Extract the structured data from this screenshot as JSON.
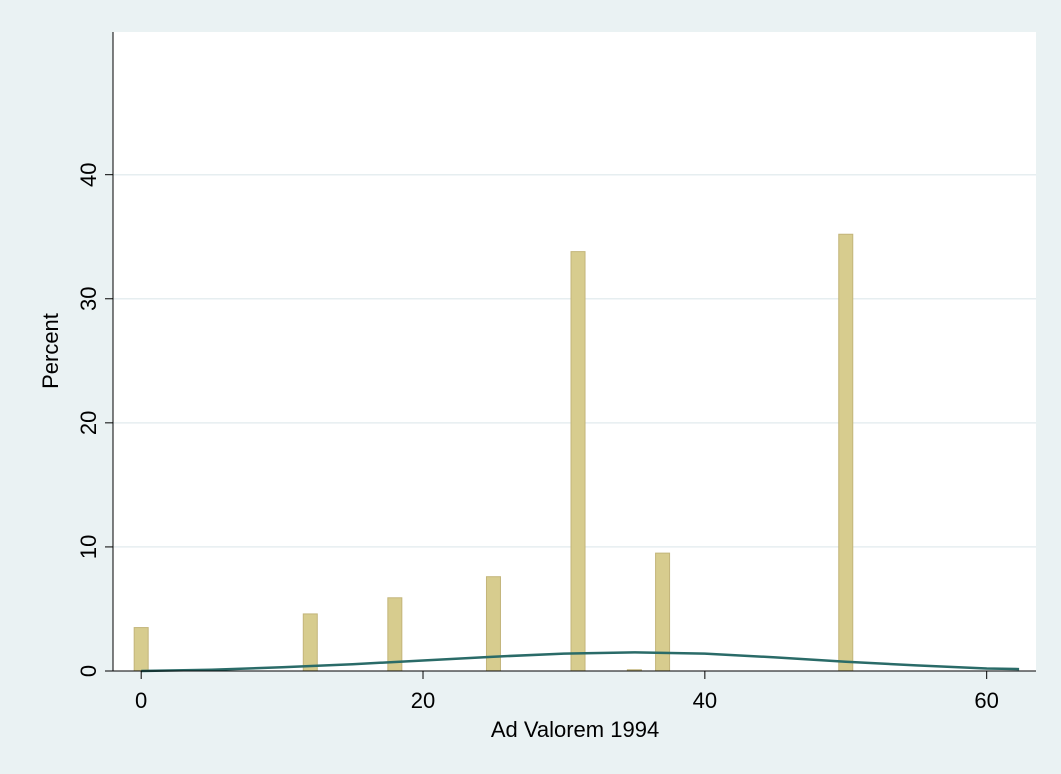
{
  "chart_data": {
    "type": "bar",
    "title": "",
    "xlabel": "Ad Valorem 1994",
    "ylabel": "Percent",
    "xlim": [
      -2,
      63.5
    ],
    "ylim": [
      0,
      51.5
    ],
    "x_ticks": [
      0,
      20,
      40,
      60
    ],
    "y_ticks": [
      0,
      10,
      20,
      30,
      40
    ],
    "grid": true,
    "legend": "none",
    "series": [
      {
        "type": "bar",
        "x": [
          0,
          12,
          18,
          25,
          31,
          35,
          37,
          50
        ],
        "values": [
          3.5,
          4.6,
          5.9,
          7.6,
          33.8,
          0.1,
          9.5,
          35.2
        ],
        "color": "#d7cc8e",
        "stroke": "#c3b57a"
      },
      {
        "type": "line",
        "x": [
          0,
          5,
          10,
          15,
          20,
          25,
          30,
          35,
          40,
          45,
          50,
          55,
          60,
          62.3
        ],
        "values": [
          0.0,
          0.1,
          0.3,
          0.55,
          0.85,
          1.15,
          1.4,
          1.5,
          1.4,
          1.1,
          0.75,
          0.45,
          0.2,
          0.15
        ],
        "color": "#2a6b68"
      }
    ]
  }
}
